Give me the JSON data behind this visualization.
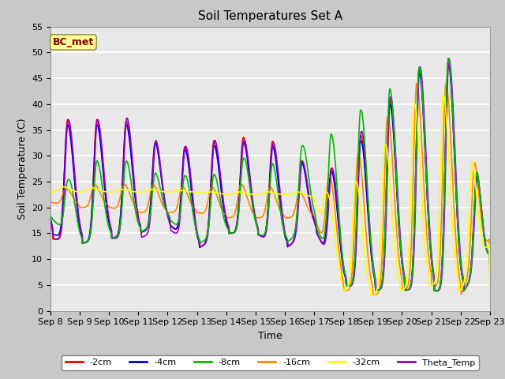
{
  "title": "Soil Temperatures Set A",
  "xlabel": "Time",
  "ylabel": "Soil Temperature (C)",
  "ylim": [
    0,
    55
  ],
  "x_tick_labels": [
    "Sep 8",
    "Sep 9",
    "Sep 10",
    "Sep 11",
    "Sep 12",
    "Sep 13",
    "Sep 14",
    "Sep 15",
    "Sep 16",
    "Sep 17",
    "Sep 18",
    "Sep 19",
    "Sep 20",
    "Sep 21",
    "Sep 22",
    "Sep 23"
  ],
  "line_colors": {
    "-2cm": "#ff0000",
    "-4cm": "#0000cc",
    "-8cm": "#00bb00",
    "-16cm": "#ff8800",
    "-32cm": "#ffff00",
    "Theta_Temp": "#9900cc"
  },
  "bg_color": "#e8e8e8",
  "grid_color": "#ffffff",
  "annotation_text": "BC_met",
  "annotation_bg": "#ffff99",
  "annotation_border": "#888833",
  "annotation_text_color": "#880000",
  "fig_bg": "#c8c8c8"
}
